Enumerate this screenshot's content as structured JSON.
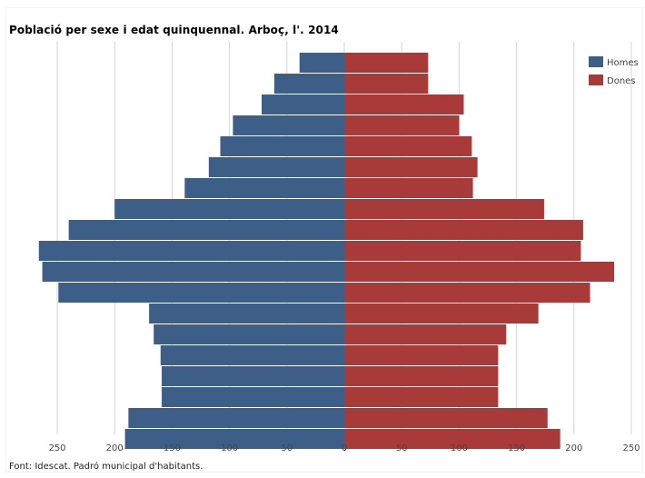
{
  "title": "Població per sexe i edat quinquennal. Arboç, l'. 2014",
  "source": "Font: Idescat. Padró municipal d'habitants.",
  "colors": {
    "homes": "#3d5f87",
    "dones": "#a83a3a",
    "grid": "#d6d6d6"
  },
  "chart_data": {
    "type": "bar",
    "orientation": "horizontal-pyramid",
    "categories": [
      "",
      "",
      "",
      "",
      "",
      "",
      "",
      "",
      "",
      "",
      "",
      "",
      "",
      "",
      "",
      "",
      "",
      "",
      ""
    ],
    "series": [
      {
        "name": "Homes",
        "values": [
          39,
          61,
          72,
          97,
          108,
          118,
          139,
          200,
          240,
          266,
          263,
          249,
          170,
          166,
          160,
          159,
          159,
          188,
          191
        ]
      },
      {
        "name": "Dones",
        "values": [
          73,
          73,
          104,
          100,
          111,
          116,
          112,
          174,
          208,
          206,
          235,
          214,
          169,
          141,
          134,
          134,
          134,
          177,
          188
        ]
      }
    ],
    "xticks": [
      "250",
      "200",
      "150",
      "100",
      "50",
      "0",
      "50",
      "100",
      "150",
      "200",
      "250"
    ],
    "xlim": [
      -250,
      250
    ],
    "grid": true,
    "legend_position": "top-right"
  }
}
